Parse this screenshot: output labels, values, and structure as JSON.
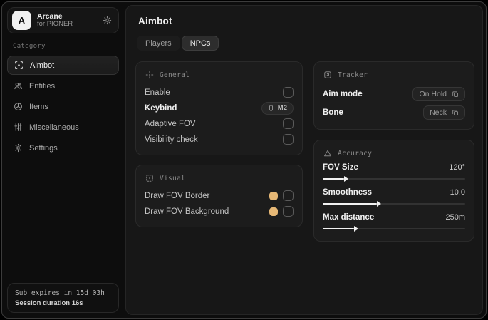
{
  "app": {
    "logo_letter": "A",
    "name": "Arcane",
    "subtitle": "for PIONER"
  },
  "sidebar": {
    "category_label": "Category",
    "items": [
      {
        "label": "Aimbot",
        "icon": "crosshair-scan-icon",
        "active": true
      },
      {
        "label": "Entities",
        "icon": "users-icon",
        "active": false
      },
      {
        "label": "Items",
        "icon": "orb-icon",
        "active": false
      },
      {
        "label": "Miscellaneous",
        "icon": "sliders-icon",
        "active": false
      },
      {
        "label": "Settings",
        "icon": "gear-icon",
        "active": false
      }
    ],
    "footer": {
      "sub_expires": "Sub expires in 15d 03h",
      "session_duration": "Session duration 16s"
    }
  },
  "main": {
    "title": "Aimbot",
    "tabs": [
      {
        "label": "Players",
        "active": false
      },
      {
        "label": "NPCs",
        "active": true
      }
    ],
    "general": {
      "title": "General",
      "rows": [
        {
          "label": "Enable",
          "control": "checkbox",
          "checked": false
        },
        {
          "label": "Keybind",
          "control": "keybind",
          "value": "M2"
        },
        {
          "label": "Adaptive FOV",
          "control": "checkbox",
          "checked": false
        },
        {
          "label": "Visibility check",
          "control": "checkbox",
          "checked": false
        }
      ]
    },
    "visual": {
      "title": "Visual",
      "rows": [
        {
          "label": "Draw FOV Border",
          "control": "color-checkbox",
          "color": "#e6b876",
          "checked": false
        },
        {
          "label": "Draw FOV Background",
          "control": "color-checkbox",
          "color": "#e6b876",
          "checked": false
        }
      ]
    },
    "tracker": {
      "title": "Tracker",
      "rows": [
        {
          "label": "Aim mode",
          "value": "On Hold"
        },
        {
          "label": "Bone",
          "value": "Neck"
        }
      ]
    },
    "accuracy": {
      "title": "Accuracy",
      "sliders": [
        {
          "label": "FOV Size",
          "value": "120°",
          "percent": 15
        },
        {
          "label": "Smoothness",
          "value": "10.0",
          "percent": 38
        },
        {
          "label": "Max distance",
          "value": "250m",
          "percent": 22
        }
      ]
    }
  },
  "colors": {
    "accent_gold": "#e6b876",
    "slider_fill": "#f1f1f1"
  }
}
